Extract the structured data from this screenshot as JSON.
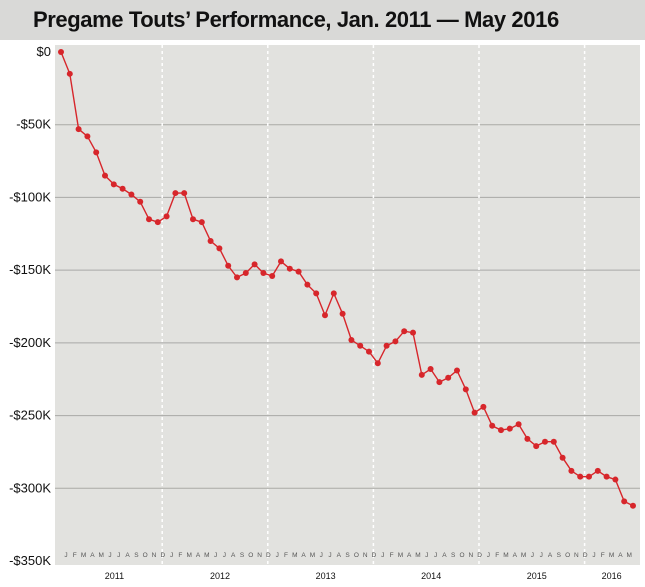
{
  "chart_data": {
    "type": "line",
    "title": "Pregame Touts’ Performance, Jan. 2011 — May 2016",
    "ylim": [
      -350000,
      0
    ],
    "yticks": [
      0,
      -50000,
      -100000,
      -150000,
      -200000,
      -250000,
      -300000,
      -350000
    ],
    "ytick_labels": [
      "$0",
      "-$50K",
      "-$100K",
      "-$150K",
      "-$200K",
      "-$250K",
      "-$300K",
      "-$350K"
    ],
    "month_labels": [
      "J",
      "F",
      "M",
      "A",
      "M",
      "J",
      "J",
      "A",
      "S",
      "O",
      "N",
      "D",
      "J",
      "F",
      "M",
      "A",
      "M",
      "J",
      "J",
      "A",
      "S",
      "O",
      "N",
      "D",
      "J",
      "F",
      "M",
      "A",
      "M",
      "J",
      "J",
      "A",
      "S",
      "O",
      "N",
      "D",
      "J",
      "F",
      "M",
      "A",
      "M",
      "J",
      "J",
      "A",
      "S",
      "O",
      "N",
      "D",
      "J",
      "F",
      "M",
      "A",
      "M",
      "J",
      "J",
      "A",
      "S",
      "O",
      "N",
      "D",
      "J",
      "F",
      "M",
      "A",
      "M"
    ],
    "year_labels": [
      "2011",
      "2012",
      "2013",
      "2014",
      "2015",
      "2016"
    ],
    "year_start_index": [
      0,
      12,
      24,
      36,
      48,
      60
    ],
    "grid": true,
    "series": [
      {
        "color": "#d7262b",
        "values": [
          0,
          -15000,
          -53000,
          -58000,
          -69000,
          -85000,
          -91000,
          -94000,
          -98000,
          -103000,
          -115000,
          -117000,
          -113000,
          -97000,
          -97000,
          -115000,
          -117000,
          -130000,
          -135000,
          -147000,
          -155000,
          -152000,
          -146000,
          -152000,
          -154000,
          -144000,
          -149000,
          -151000,
          -160000,
          -166000,
          -181000,
          -166000,
          -180000,
          -198000,
          -202000,
          -206000,
          -214000,
          -202000,
          -199000,
          -192000,
          -193000,
          -222000,
          -218000,
          -227000,
          -224000,
          -219000,
          -232000,
          -248000,
          -244000,
          -257000,
          -260000,
          -259000,
          -256000,
          -266000,
          -271000,
          -268000,
          -268000,
          -279000,
          -288000,
          -292000,
          -292000,
          -288000,
          -292000,
          -294000,
          -309000,
          -312000
        ]
      }
    ]
  }
}
